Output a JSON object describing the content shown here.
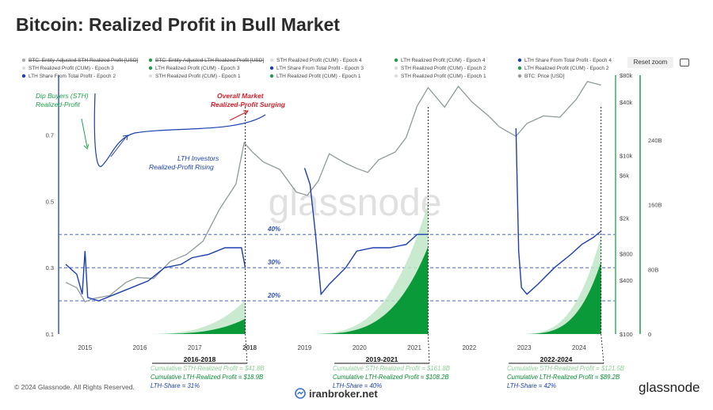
{
  "title": "Bitcoin: Realized Profit in Bull Market",
  "reset_zoom": "Reset zoom",
  "footer": {
    "copyright": "© 2024 Glassnode. All Rights Reserved.",
    "site": "iranbroker.net",
    "brand": "glassnode"
  },
  "watermark": "glassnode",
  "legend": [
    {
      "label": "BTC: Entity-Adjusted STH Realized Profit [USD]",
      "color": "#aaaaaa",
      "struck": true
    },
    {
      "label": "BTC: Entity-Adjusted LTH Realized Profit [USD]",
      "color": "#1e9c4a",
      "struck": true
    },
    {
      "label": "STH Realized Profit (CUM) - Epoch 4",
      "color": "#dddddd",
      "struck": false
    },
    {
      "label": "LTH Realized Profit (CUM) - Epoch 4",
      "color": "#1e9c4a",
      "struck": false
    },
    {
      "label": "LTH Share From Total Profit - Epoch 4",
      "color": "#1a3fb0",
      "struck": false
    },
    {
      "label": "STH Realized Profit (CUM) - Epoch 3",
      "color": "#dddddd",
      "struck": false
    },
    {
      "label": "LTH Realized Profit (CUM) - Epoch 3",
      "color": "#1e9c4a",
      "struck": false
    },
    {
      "label": "LTH Share From Total Profit - Epoch 3",
      "color": "#1a3fb0",
      "struck": false
    },
    {
      "label": "STH Realized Profit (CUM) - Epoch 2",
      "color": "#dddddd",
      "struck": false
    },
    {
      "label": "LTH Realized Profit (CUM) - Epoch 2",
      "color": "#1e9c4a",
      "struck": false
    },
    {
      "label": "LTH Share From Total Profit - Epoch 2",
      "color": "#1a3fb0",
      "struck": false
    },
    {
      "label": "STH Realized Profit (CUM) - Epoch 1",
      "color": "#dddddd",
      "struck": false
    },
    {
      "label": "LTH Realized Profit (CUM) - Epoch 1",
      "color": "#1e9c4a",
      "struck": false
    },
    {
      "label": "STH Realized Profit (CUM) - Epoch 1",
      "color": "#dddddd",
      "struck": false
    },
    {
      "label": "BTC: Price [USD]",
      "color": "#999999",
      "struck": false
    }
  ],
  "colors": {
    "price": "#8e9a9a",
    "share": "#1a3fb0",
    "lth": "#0a9a3a",
    "sth": "#bfe6c6",
    "axis_green": "#0a9a3a",
    "annot_green": "#1ea34a",
    "annot_red": "#d0202a"
  },
  "chart_data": {
    "type": "line",
    "x_ticks": [
      "2015",
      "2016",
      "2017",
      "2018",
      "2019",
      "2020",
      "2021",
      "2022",
      "2023",
      "2024"
    ],
    "left_axis": {
      "ticks": [
        "0.1",
        "0.3",
        "0.5",
        "0.7"
      ],
      "range": [
        0.1,
        0.88
      ]
    },
    "price_axis": {
      "ticks": [
        "$100",
        "$400",
        "$800",
        "$2k",
        "$6k",
        "$10k",
        "$40k",
        "$80k"
      ],
      "scale": "log",
      "range": [
        100,
        80000
      ]
    },
    "profit_axis": {
      "ticks": [
        "0",
        "80B",
        "160B",
        "240B"
      ],
      "range": [
        0,
        320
      ]
    },
    "reference_lines": [
      {
        "label": "40%",
        "value": 0.4
      },
      {
        "label": "30%",
        "value": 0.3
      },
      {
        "label": "20%",
        "value": 0.2
      }
    ],
    "series": [
      {
        "name": "BTC: Price [USD]",
        "x": [
          2014.7,
          2014.9,
          2015.05,
          2015.2,
          2015.5,
          2015.8,
          2016.0,
          2016.3,
          2016.6,
          2016.9,
          2017.2,
          2017.5,
          2017.8,
          2017.95,
          2018.1,
          2018.3,
          2018.6,
          2018.9,
          2019.1,
          2019.3,
          2019.5,
          2019.8,
          2020.0,
          2020.2,
          2020.4,
          2020.7,
          2020.9,
          2021.1,
          2021.3,
          2021.6,
          2021.85,
          2022.1,
          2022.4,
          2022.6,
          2022.9,
          2023.1,
          2023.4,
          2023.7,
          2024.0,
          2024.2,
          2024.45
        ],
        "y": [
          380,
          330,
          230,
          250,
          270,
          380,
          430,
          420,
          650,
          780,
          1100,
          2500,
          4800,
          14000,
          11000,
          8500,
          7000,
          3900,
          3600,
          5200,
          10500,
          8200,
          7200,
          6500,
          9000,
          11000,
          16000,
          36000,
          58000,
          35000,
          60000,
          40000,
          28000,
          21000,
          16500,
          23000,
          28000,
          27000,
          43000,
          68000,
          62000
        ]
      },
      {
        "name": "LTH Share From Total Profit - Epoch 2",
        "x": [
          2014.7,
          2014.9,
          2015.0,
          2015.05,
          2015.1,
          2015.3,
          2015.6,
          2015.9,
          2016.2,
          2016.5,
          2016.8,
          2017.0,
          2017.3,
          2017.6,
          2017.9,
          2017.97
        ],
        "y": [
          0.31,
          0.28,
          0.22,
          0.35,
          0.21,
          0.2,
          0.22,
          0.24,
          0.26,
          0.3,
          0.31,
          0.33,
          0.34,
          0.36,
          0.36,
          0.3
        ]
      },
      {
        "name": "LTH Share From Total Profit - Epoch 3",
        "x": [
          2019.05,
          2019.15,
          2019.25,
          2019.35,
          2019.5,
          2019.8,
          2020.0,
          2020.3,
          2020.6,
          2020.9,
          2021.1,
          2021.3
        ],
        "y": [
          0.6,
          0.55,
          0.4,
          0.22,
          0.25,
          0.3,
          0.35,
          0.36,
          0.36,
          0.37,
          0.4,
          0.4
        ]
      },
      {
        "name": "LTH Share From Total Profit - Epoch 4",
        "x": [
          2022.9,
          2022.95,
          2023.0,
          2023.1,
          2023.3,
          2023.6,
          2023.9,
          2024.1,
          2024.3,
          2024.45
        ],
        "y": [
          0.72,
          0.35,
          0.24,
          0.22,
          0.25,
          0.3,
          0.34,
          0.37,
          0.39,
          0.41
        ]
      }
    ],
    "cumulative_profit": [
      {
        "epoch": "2016-2018",
        "x_start": 2016.0,
        "x_end": 2017.97,
        "sth_end": 41.8,
        "lth_end": 18.9
      },
      {
        "epoch": "2019-2021",
        "x_start": 2019.0,
        "x_end": 2021.3,
        "sth_end": 161.8,
        "lth_end": 108.2
      },
      {
        "epoch": "2022-2024",
        "x_start": 2022.9,
        "x_end": 2024.45,
        "sth_end": 121.5,
        "lth_end": 89.2
      }
    ]
  },
  "annotations": {
    "dip_buyers": "Dip Buyers (STH)\nRealized-Profit",
    "overall_market": "Overall Market\nRealized-Profit Surging",
    "lth_investors": "LTH Investors\nRealized-Profit Rising"
  },
  "epochs": [
    {
      "label": "2016-2018",
      "sth": "Cumulative STH-Realized Profit = $41.8B",
      "lth": "Cumulative LTH-Realized Profit   = $18.9B",
      "share": "LTH-Share = 31%"
    },
    {
      "label": "2019-2021",
      "sth": "Cumulative STH-Realized Profit = $161.8B",
      "lth": "Cumulative LTH-Realized Profit   = $108.2B",
      "share": "LTH-Share = 40%"
    },
    {
      "label": "2022-2024",
      "sth": "Cumulative STH-Realized Profit = $121.5B",
      "lth": "Cumulative LTH-Realized Profit   = $89.2B",
      "share": "LTH-Share = 42%"
    }
  ]
}
